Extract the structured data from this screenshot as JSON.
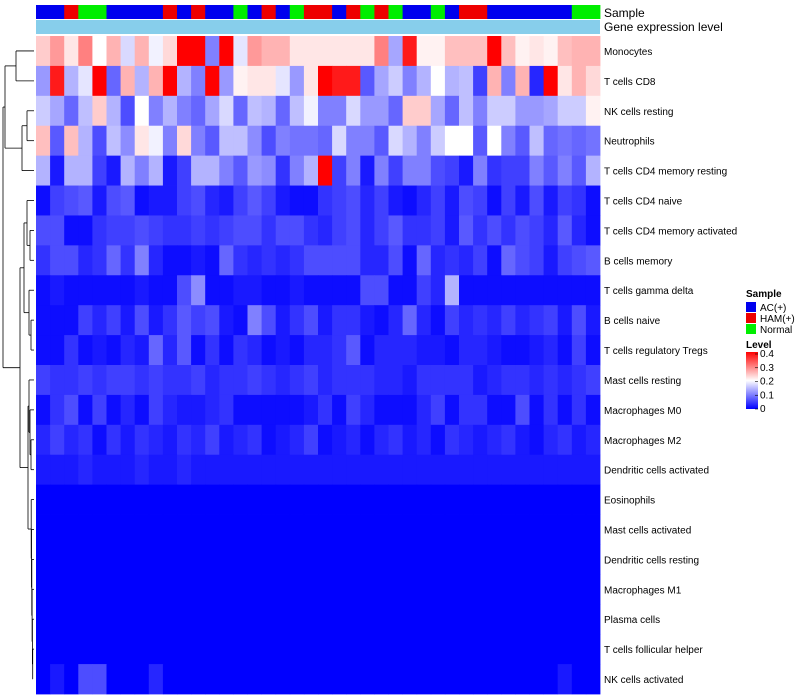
{
  "chart_data": {
    "type": "heatmap",
    "title": "",
    "annotation_tracks": [
      "Sample",
      "Gene expression level"
    ],
    "row_labels": [
      "Monocytes",
      "T cells CD8",
      "NK cells resting",
      "Neutrophils",
      "T cells CD4 memory resting",
      "T cells CD4 naive",
      "T cells CD4 memory activated",
      "B cells memory",
      "T cells gamma delta",
      "B cells naive",
      "T cells regulatory  Tregs",
      "Mast cells resting",
      "Macrophages M0",
      "Macrophages M2",
      "Dendritic cells activated",
      "Eosinophils",
      "Mast cells activated",
      "Dendritic cells resting",
      "Macrophages M1",
      "Plasma cells",
      "T cells follicular helper",
      "NK cells activated"
    ],
    "sample_groups": [
      "AC(+)",
      "AC(+)",
      "HAM(+)",
      "Normal",
      "Normal",
      "AC(+)",
      "AC(+)",
      "AC(+)",
      "AC(+)",
      "HAM(+)",
      "AC(+)",
      "HAM(+)",
      "AC(+)",
      "AC(+)",
      "Normal",
      "AC(+)",
      "HAM(+)",
      "AC(+)",
      "Normal",
      "HAM(+)",
      "HAM(+)",
      "AC(+)",
      "HAM(+)",
      "Normal",
      "HAM(+)",
      "Normal",
      "AC(+)",
      "AC(+)",
      "Normal",
      "AC(+)",
      "HAM(+)",
      "HAM(+)",
      "AC(+)",
      "AC(+)",
      "AC(+)",
      "AC(+)",
      "AC(+)",
      "AC(+)",
      "Normal",
      "Normal"
    ],
    "values": [
      [
        0.24,
        0.28,
        0.22,
        0.3,
        0.2,
        0.26,
        0.17,
        0.26,
        0.19,
        0.23,
        0.4,
        0.4,
        0.1,
        0.4,
        0.18,
        0.28,
        0.26,
        0.26,
        0.22,
        0.22,
        0.22,
        0.22,
        0.22,
        0.22,
        0.3,
        0.13,
        0.38,
        0.21,
        0.21,
        0.25,
        0.25,
        0.25,
        0.4,
        0.25,
        0.21,
        0.22,
        0.21,
        0.25,
        0.26,
        0.26
      ],
      [
        0.12,
        0.38,
        0.14,
        0.18,
        0.4,
        0.08,
        0.26,
        0.14,
        0.26,
        0.4,
        0.14,
        0.1,
        0.4,
        0.12,
        0.21,
        0.22,
        0.22,
        0.18,
        0.12,
        0.22,
        0.4,
        0.38,
        0.38,
        0.07,
        0.13,
        0.16,
        0.1,
        0.14,
        0.2,
        0.14,
        0.15,
        0.05,
        0.26,
        0.1,
        0.26,
        0.03,
        0.4,
        0.22,
        0.26,
        0.23
      ],
      [
        0.16,
        0.13,
        0.08,
        0.15,
        0.24,
        0.14,
        0.06,
        0.2,
        0.1,
        0.14,
        0.1,
        0.08,
        0.13,
        0.17,
        0.08,
        0.15,
        0.14,
        0.08,
        0.15,
        0.19,
        0.1,
        0.1,
        0.17,
        0.12,
        0.12,
        0.08,
        0.24,
        0.24,
        0.13,
        0.08,
        0.15,
        0.1,
        0.16,
        0.16,
        0.12,
        0.12,
        0.13,
        0.16,
        0.16,
        0.21
      ],
      [
        0.25,
        0.07,
        0.25,
        0.14,
        0.06,
        0.15,
        0.11,
        0.22,
        0.19,
        0.1,
        0.23,
        0.1,
        0.07,
        0.15,
        0.15,
        0.11,
        0.06,
        0.1,
        0.09,
        0.09,
        0.08,
        0.17,
        0.1,
        0.1,
        0.07,
        0.17,
        0.14,
        0.1,
        0.16,
        0.2,
        0.2,
        0.07,
        0.2,
        0.1,
        0.07,
        0.15,
        0.08,
        0.09,
        0.08,
        0.09
      ],
      [
        0.14,
        0.02,
        0.14,
        0.14,
        0.05,
        0.02,
        0.14,
        0.1,
        0.14,
        0.02,
        0.05,
        0.14,
        0.14,
        0.1,
        0.07,
        0.12,
        0.11,
        0.04,
        0.1,
        0.14,
        0.4,
        0.05,
        0.1,
        0.02,
        0.1,
        0.05,
        0.1,
        0.1,
        0.06,
        0.05,
        0.02,
        0.1,
        0.04,
        0.05,
        0.05,
        0.1,
        0.07,
        0.1,
        0.07,
        0.14
      ],
      [
        0.01,
        0.05,
        0.06,
        0.07,
        0.02,
        0.06,
        0.07,
        0.01,
        0.02,
        0.02,
        0.05,
        0.06,
        0.03,
        0.02,
        0.05,
        0.07,
        0.05,
        0.02,
        0.01,
        0.01,
        0.04,
        0.05,
        0.06,
        0.03,
        0.05,
        0.02,
        0.01,
        0.03,
        0.05,
        0.02,
        0.06,
        0.05,
        0.01,
        0.05,
        0.02,
        0.06,
        0.02,
        0.05,
        0.04,
        0.01
      ],
      [
        0.06,
        0.06,
        0.01,
        0.01,
        0.04,
        0.05,
        0.05,
        0.06,
        0.05,
        0.04,
        0.04,
        0.05,
        0.04,
        0.05,
        0.06,
        0.06,
        0.04,
        0.06,
        0.06,
        0.04,
        0.03,
        0.05,
        0.06,
        0.03,
        0.05,
        0.07,
        0.04,
        0.04,
        0.05,
        0.02,
        0.07,
        0.04,
        0.06,
        0.04,
        0.06,
        0.05,
        0.03,
        0.07,
        0.03,
        0.01
      ],
      [
        0.04,
        0.06,
        0.06,
        0.03,
        0.04,
        0.08,
        0.04,
        0.1,
        0.03,
        0.01,
        0.01,
        0.02,
        0.01,
        0.08,
        0.04,
        0.03,
        0.04,
        0.03,
        0.04,
        0.06,
        0.06,
        0.06,
        0.06,
        0.03,
        0.03,
        0.06,
        0.01,
        0.08,
        0.03,
        0.04,
        0.03,
        0.05,
        0.01,
        0.08,
        0.06,
        0.05,
        0.02,
        0.05,
        0.06,
        0.07
      ],
      [
        0.01,
        0.02,
        0.01,
        0.01,
        0.01,
        0.01,
        0.01,
        0.02,
        0.01,
        0.01,
        0.06,
        0.11,
        0.01,
        0.01,
        0.02,
        0.02,
        0.01,
        0.01,
        0.02,
        0.01,
        0.01,
        0.01,
        0.01,
        0.06,
        0.06,
        0.01,
        0.01,
        0.05,
        0.03,
        0.14,
        0.01,
        0.01,
        0.01,
        0.01,
        0.01,
        0.01,
        0.01,
        0.01,
        0.01,
        0.01
      ],
      [
        0.01,
        0.01,
        0.01,
        0.05,
        0.03,
        0.05,
        0.02,
        0.06,
        0.02,
        0.04,
        0.07,
        0.05,
        0.06,
        0.02,
        0.01,
        0.1,
        0.06,
        0.02,
        0.04,
        0.06,
        0.02,
        0.04,
        0.04,
        0.02,
        0.01,
        0.03,
        0.08,
        0.03,
        0.01,
        0.05,
        0.03,
        0.04,
        0.03,
        0.05,
        0.03,
        0.04,
        0.05,
        0.02,
        0.06,
        0.02
      ],
      [
        0.01,
        0.01,
        0.04,
        0.01,
        0.02,
        0.01,
        0.03,
        0.02,
        0.08,
        0.03,
        0.07,
        0.01,
        0.04,
        0.01,
        0.04,
        0.03,
        0.01,
        0.02,
        0.01,
        0.03,
        0.03,
        0.04,
        0.07,
        0.01,
        0.03,
        0.03,
        0.03,
        0.02,
        0.02,
        0.01,
        0.03,
        0.03,
        0.02,
        0.01,
        0.01,
        0.02,
        0.03,
        0.01,
        0.05,
        0.01
      ],
      [
        0.05,
        0.04,
        0.04,
        0.05,
        0.04,
        0.05,
        0.05,
        0.04,
        0.05,
        0.04,
        0.04,
        0.05,
        0.03,
        0.04,
        0.04,
        0.05,
        0.04,
        0.03,
        0.04,
        0.05,
        0.03,
        0.04,
        0.04,
        0.04,
        0.03,
        0.03,
        0.02,
        0.04,
        0.04,
        0.04,
        0.04,
        0.02,
        0.03,
        0.04,
        0.04,
        0.03,
        0.04,
        0.03,
        0.04,
        0.05
      ],
      [
        0.01,
        0.04,
        0.06,
        0.01,
        0.05,
        0.01,
        0.03,
        0.01,
        0.05,
        0.03,
        0.02,
        0.02,
        0.03,
        0.04,
        0.01,
        0.01,
        0.01,
        0.01,
        0.01,
        0.02,
        0.04,
        0.01,
        0.05,
        0.03,
        0.01,
        0.01,
        0.01,
        0.03,
        0.05,
        0.01,
        0.04,
        0.04,
        0.01,
        0.01,
        0.06,
        0.01,
        0.04,
        0.01,
        0.04,
        0.01
      ],
      [
        0.03,
        0.05,
        0.03,
        0.04,
        0.01,
        0.04,
        0.02,
        0.04,
        0.03,
        0.02,
        0.04,
        0.03,
        0.05,
        0.02,
        0.03,
        0.04,
        0.01,
        0.02,
        0.03,
        0.05,
        0.01,
        0.02,
        0.03,
        0.01,
        0.03,
        0.04,
        0.02,
        0.03,
        0.01,
        0.04,
        0.03,
        0.02,
        0.03,
        0.04,
        0.02,
        0.01,
        0.03,
        0.04,
        0.02,
        0.03
      ],
      [
        0.02,
        0.02,
        0.02,
        0.03,
        0.02,
        0.02,
        0.02,
        0.03,
        0.02,
        0.02,
        0.03,
        0.02,
        0.02,
        0.02,
        0.02,
        0.02,
        0.02,
        0.02,
        0.02,
        0.02,
        0.02,
        0.02,
        0.02,
        0.02,
        0.02,
        0.02,
        0.02,
        0.02,
        0.02,
        0.02,
        0.02,
        0.02,
        0.02,
        0.02,
        0.02,
        0.02,
        0.02,
        0.02,
        0.02,
        0.02
      ],
      [
        0.0,
        0.0,
        0.0,
        0.0,
        0.0,
        0.0,
        0.0,
        0.0,
        0.0,
        0.0,
        0.0,
        0.0,
        0.0,
        0.0,
        0.0,
        0.0,
        0.0,
        0.0,
        0.0,
        0.0,
        0.0,
        0.0,
        0.0,
        0.0,
        0.0,
        0.0,
        0.0,
        0.0,
        0.0,
        0.0,
        0.0,
        0.0,
        0.0,
        0.0,
        0.0,
        0.0,
        0.0,
        0.0,
        0.0,
        0.0
      ],
      [
        0.0,
        0.0,
        0.0,
        0.0,
        0.0,
        0.0,
        0.0,
        0.0,
        0.0,
        0.0,
        0.0,
        0.0,
        0.0,
        0.0,
        0.0,
        0.0,
        0.0,
        0.0,
        0.0,
        0.0,
        0.0,
        0.0,
        0.0,
        0.0,
        0.0,
        0.0,
        0.0,
        0.0,
        0.0,
        0.0,
        0.0,
        0.0,
        0.0,
        0.0,
        0.0,
        0.0,
        0.0,
        0.0,
        0.0,
        0.0
      ],
      [
        0.0,
        0.0,
        0.0,
        0.0,
        0.0,
        0.0,
        0.0,
        0.0,
        0.0,
        0.0,
        0.0,
        0.0,
        0.0,
        0.0,
        0.0,
        0.0,
        0.0,
        0.0,
        0.0,
        0.0,
        0.0,
        0.0,
        0.0,
        0.0,
        0.0,
        0.0,
        0.0,
        0.0,
        0.0,
        0.0,
        0.0,
        0.0,
        0.0,
        0.0,
        0.0,
        0.0,
        0.0,
        0.0,
        0.0,
        0.0
      ],
      [
        0.0,
        0.0,
        0.0,
        0.0,
        0.0,
        0.0,
        0.0,
        0.0,
        0.0,
        0.0,
        0.0,
        0.0,
        0.0,
        0.0,
        0.0,
        0.0,
        0.0,
        0.0,
        0.0,
        0.0,
        0.0,
        0.0,
        0.0,
        0.0,
        0.0,
        0.0,
        0.0,
        0.0,
        0.0,
        0.0,
        0.0,
        0.0,
        0.0,
        0.0,
        0.0,
        0.0,
        0.0,
        0.0,
        0.0,
        0.0
      ],
      [
        0.0,
        0.0,
        0.0,
        0.0,
        0.0,
        0.0,
        0.0,
        0.0,
        0.0,
        0.0,
        0.0,
        0.0,
        0.0,
        0.0,
        0.0,
        0.0,
        0.0,
        0.0,
        0.0,
        0.0,
        0.0,
        0.0,
        0.0,
        0.0,
        0.0,
        0.0,
        0.0,
        0.0,
        0.0,
        0.0,
        0.0,
        0.0,
        0.0,
        0.0,
        0.0,
        0.0,
        0.0,
        0.0,
        0.0,
        0.0
      ],
      [
        0.0,
        0.0,
        0.0,
        0.0,
        0.0,
        0.0,
        0.0,
        0.0,
        0.0,
        0.0,
        0.0,
        0.0,
        0.0,
        0.0,
        0.0,
        0.0,
        0.0,
        0.0,
        0.0,
        0.0,
        0.0,
        0.0,
        0.0,
        0.0,
        0.0,
        0.0,
        0.0,
        0.0,
        0.0,
        0.0,
        0.0,
        0.0,
        0.0,
        0.0,
        0.0,
        0.0,
        0.0,
        0.0,
        0.0,
        0.0
      ],
      [
        0.0,
        0.02,
        0.0,
        0.06,
        0.06,
        0.0,
        0.0,
        0.0,
        0.03,
        0.0,
        0.0,
        0.0,
        0.0,
        0.0,
        0.0,
        0.0,
        0.0,
        0.0,
        0.0,
        0.0,
        0.0,
        0.0,
        0.0,
        0.0,
        0.0,
        0.0,
        0.0,
        0.0,
        0.0,
        0.0,
        0.0,
        0.0,
        0.0,
        0.0,
        0.0,
        0.0,
        0.0,
        0.02,
        0.0,
        0.0
      ]
    ],
    "legend": {
      "sample": {
        "title": "Sample",
        "entries": [
          {
            "label": "AC(+)",
            "color": "#0000ee"
          },
          {
            "label": "HAM(+)",
            "color": "#ee0000"
          },
          {
            "label": "Normal",
            "color": "#00ee00"
          }
        ]
      },
      "level": {
        "title": "Level",
        "ticks": [
          "0.4",
          "0.3",
          "0.2",
          "0.1",
          "0"
        ],
        "range": [
          0,
          0.4
        ]
      }
    },
    "colors": {
      "low": "#0000ff",
      "mid": "#ffffff",
      "high": "#ff0000",
      "expression_track": "#87ceeb"
    }
  }
}
